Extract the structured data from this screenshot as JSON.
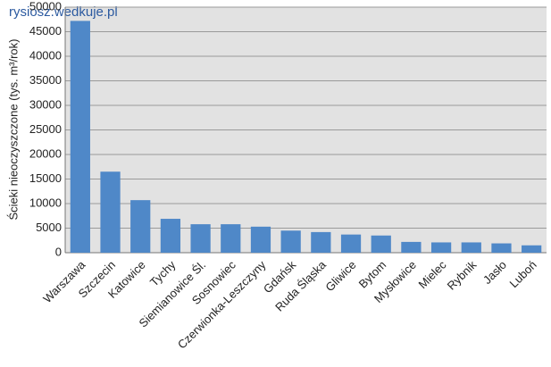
{
  "chart_data": {
    "type": "bar",
    "watermark": "rysiosz.wedkuje.pl",
    "y_label": "Ścieki nieoczyszczone (tys. m³/rok)",
    "categories": [
      "Warszawa",
      "Szczecin",
      "Katowice",
      "Tychy",
      "Siemianowice Śl.",
      "Sosnowiec",
      "Czerwionka-Leszczyny",
      "Gdańsk",
      "Ruda Śląska",
      "Gliwice",
      "Bytom",
      "Mysłowice",
      "Mielec",
      "Rybnik",
      "Jasło",
      "Luboń"
    ],
    "values": [
      47200,
      16500,
      10700,
      6900,
      5800,
      5800,
      5300,
      4500,
      4200,
      3700,
      3500,
      2200,
      2100,
      2100,
      1900,
      1500
    ],
    "color": "#4f88c8",
    "ylim": [
      0,
      50000
    ],
    "yticks": [
      0,
      5000,
      10000,
      15000,
      20000,
      25000,
      30000,
      35000,
      40000,
      45000,
      50000
    ],
    "grid": true
  }
}
